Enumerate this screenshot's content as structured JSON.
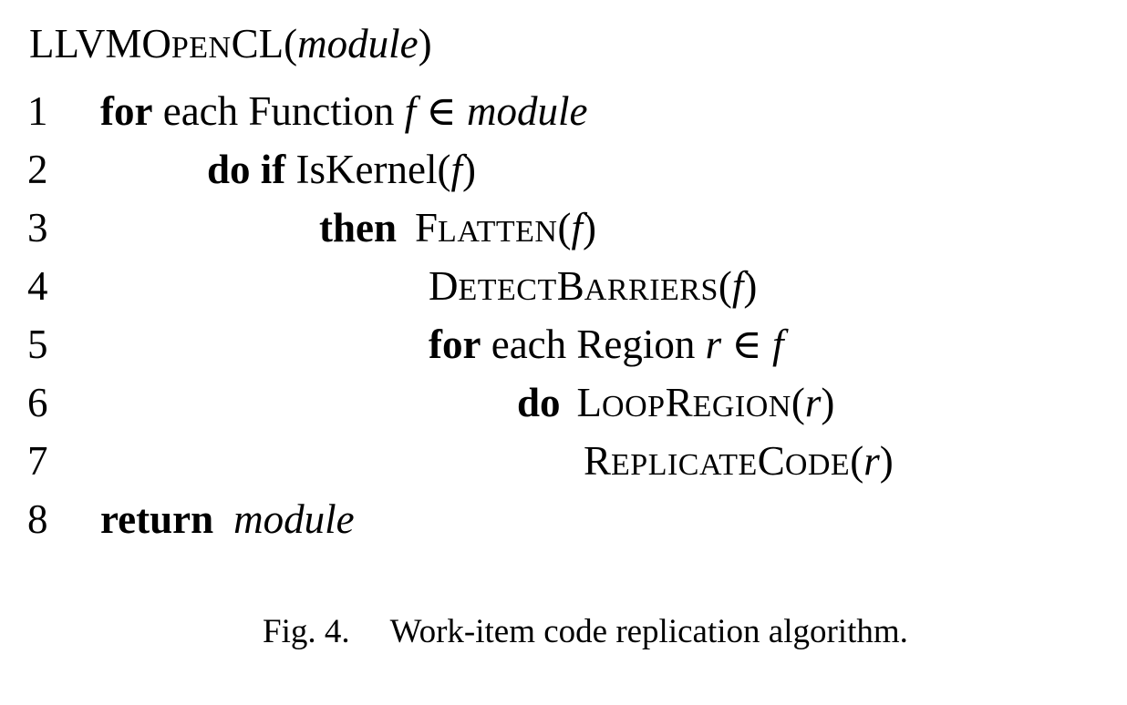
{
  "algorithm": {
    "title": {
      "name_part1": "LLVMO",
      "name_part2": "PEN",
      "name_part3": "CL",
      "paren_open": "(",
      "arg": "module",
      "paren_close": ")"
    },
    "lines": [
      {
        "num": "1",
        "kw1": "for",
        "text1": " each Function ",
        "var1": "f",
        "op": " ∈ ",
        "var2": "module"
      },
      {
        "num": "2",
        "kw1": "do",
        "kw2": " if",
        "text1": " IsKernel(",
        "var1": "f",
        "text2": ")"
      },
      {
        "num": "3",
        "kw1": "then",
        "proc_a": "F",
        "proc_b": "LATTEN",
        "text1": "(",
        "var1": "f",
        "text2": ")"
      },
      {
        "num": "4",
        "proc_a": "D",
        "proc_b": "ETECT",
        "proc_c": "B",
        "proc_d": "ARRIERS",
        "text1": "(",
        "var1": "f",
        "text2": ")"
      },
      {
        "num": "5",
        "kw1": "for",
        "text1": " each Region ",
        "var1": "r",
        "op": " ∈ ",
        "var2": "f"
      },
      {
        "num": "6",
        "kw1": "do",
        "proc_a": "L",
        "proc_b": "OOP",
        "proc_c": "R",
        "proc_d": "EGION",
        "text1": "(",
        "var1": "r",
        "text2": ")"
      },
      {
        "num": "7",
        "proc_a": "R",
        "proc_b": "EPLICATE",
        "proc_c": "C",
        "proc_d": "ODE",
        "text1": "(",
        "var1": "r",
        "text2": ")"
      },
      {
        "num": "8",
        "kw1": "return",
        "var1": "module"
      }
    ]
  },
  "caption": {
    "label": "Fig. 4.",
    "text": "Work-item code replication algorithm."
  }
}
